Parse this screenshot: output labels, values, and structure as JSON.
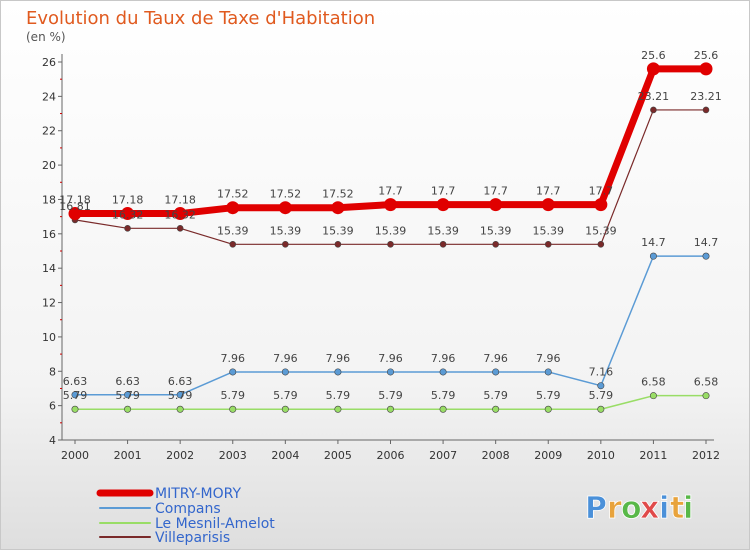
{
  "chart_data": {
    "type": "line",
    "title": "Evolution du Taux de Taxe d'Habitation",
    "subtitle": "(en %)",
    "x": [
      "2000",
      "2001",
      "2002",
      "2003",
      "2004",
      "2005",
      "2006",
      "2007",
      "2008",
      "2009",
      "2010",
      "2011",
      "2012"
    ],
    "ylim": [
      4,
      26
    ],
    "yticks": [
      4,
      6,
      8,
      10,
      12,
      14,
      16,
      18,
      20,
      22,
      24,
      26
    ],
    "grid": false,
    "legend_placement": "bottom-left",
    "series": [
      {
        "name": "MITRY-MORY",
        "color": "#e00000",
        "values": [
          17.18,
          17.18,
          17.18,
          17.52,
          17.52,
          17.52,
          17.7,
          17.7,
          17.7,
          17.7,
          17.7,
          25.6,
          25.6
        ],
        "labels": [
          "17.18",
          "17.18",
          "17.18",
          "17.52",
          "17.52",
          "17.52",
          "17.7",
          "17.7",
          "17.7",
          "17.7",
          "17.7",
          "25.6",
          "25.6"
        ]
      },
      {
        "name": "Compans",
        "color": "#5b9bd5",
        "values": [
          6.63,
          6.63,
          6.63,
          7.96,
          7.96,
          7.96,
          7.96,
          7.96,
          7.96,
          7.96,
          7.16,
          14.7,
          14.7
        ],
        "labels": [
          "6.63",
          "6.63",
          "6.63",
          "7.96",
          "7.96",
          "7.96",
          "7.96",
          "7.96",
          "7.96",
          "7.96",
          "7.16",
          "14.7",
          "14.7"
        ]
      },
      {
        "name": "Le Mesnil-Amelot",
        "color": "#99dd66",
        "values": [
          5.79,
          5.79,
          5.79,
          5.79,
          5.79,
          5.79,
          5.79,
          5.79,
          5.79,
          5.79,
          5.79,
          6.58,
          6.58
        ],
        "labels": [
          "5.79",
          "5.79",
          "5.79",
          "5.79",
          "5.79",
          "5.79",
          "5.79",
          "5.79",
          "5.79",
          "5.79",
          "5.79",
          "6.58",
          "6.58"
        ]
      },
      {
        "name": "Villeparisis",
        "color": "#7a2a2a",
        "values": [
          16.81,
          16.32,
          16.32,
          15.39,
          15.39,
          15.39,
          15.39,
          15.39,
          15.39,
          15.39,
          15.39,
          23.21,
          23.21
        ],
        "labels": [
          "16.81",
          "16.32",
          "16.32",
          "15.39",
          "15.39",
          "15.39",
          "15.39",
          "15.39",
          "15.39",
          "15.39",
          "15.39",
          "23.21",
          "23.21"
        ]
      }
    ]
  },
  "branding": {
    "logo_letters": [
      "P",
      "r",
      "o",
      "x",
      "i",
      "t",
      "i"
    ],
    "logo_colors": [
      "#4a90d9",
      "#e8a33c",
      "#58b848",
      "#e04a4a",
      "#4a90d9",
      "#e8a33c",
      "#58b848"
    ]
  }
}
